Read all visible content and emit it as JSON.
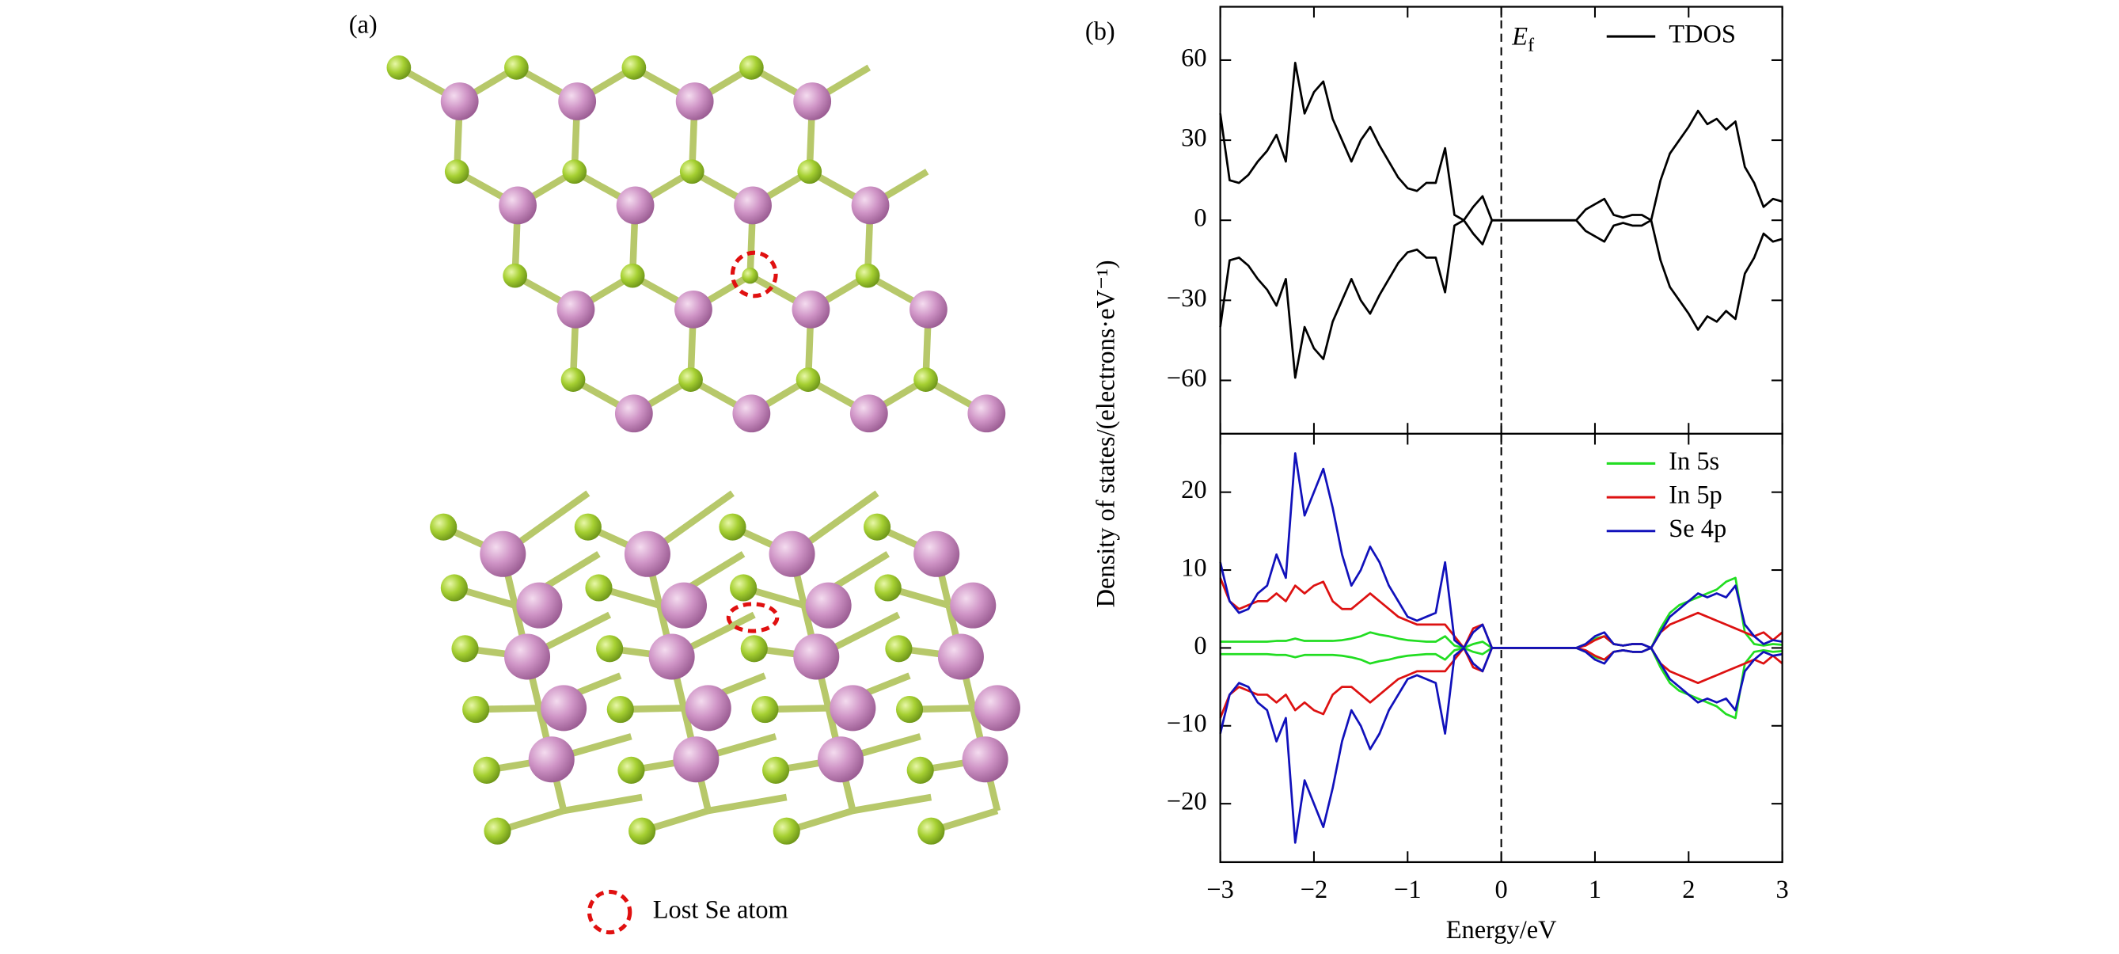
{
  "panel_a": {
    "label": "(a)",
    "legend": "Lost Se atom"
  },
  "chart_data": [
    {
      "type": "line",
      "panel_label": "(b)",
      "annotation_symbol": "E",
      "annotation_subscript": "f",
      "vline": 0,
      "legend": "upper right",
      "show_xtick_labels": false,
      "y_label": "Density of states/(electrons·eV⁻¹)",
      "xlim": [
        -3,
        3
      ],
      "xticks": [
        -3,
        -2,
        -1,
        0,
        1,
        2,
        3
      ],
      "ylim": [
        -80,
        80
      ],
      "yticks": [
        {
          "value": -60,
          "label": "−60"
        },
        {
          "value": -30,
          "label": "−30"
        },
        0,
        30,
        60
      ],
      "x": [
        -3,
        -2.9,
        -2.8,
        -2.7,
        -2.6,
        -2.5,
        -2.4,
        -2.3,
        -2.2,
        -2.1,
        -2,
        -1.9,
        -1.8,
        -1.7,
        -1.6,
        -1.5,
        -1.4,
        -1.3,
        -1.2,
        -1.1,
        -1,
        -0.9,
        -0.8,
        -0.7,
        -0.6,
        -0.5,
        -0.4,
        -0.3,
        -0.2,
        -0.1,
        0,
        0.1,
        0.2,
        0.3,
        0.4,
        0.5,
        0.6,
        0.7,
        0.8,
        0.9,
        1,
        1.1,
        1.2,
        1.3,
        1.4,
        1.5,
        1.6,
        1.7,
        1.8,
        1.9,
        2,
        2.1,
        2.2,
        2.3,
        2.4,
        2.5,
        2.6,
        2.7,
        2.8,
        2.9,
        3
      ],
      "series": [
        {
          "name": "TDOS",
          "color": "#000000",
          "values": [
            40,
            15,
            14,
            17,
            22,
            26,
            32,
            22,
            59,
            40,
            48,
            52,
            38,
            30,
            22,
            30,
            35,
            28,
            22,
            16,
            12,
            11,
            14,
            14,
            27,
            2,
            0,
            5,
            9,
            0,
            0,
            0,
            0,
            0,
            0,
            0,
            0,
            0,
            0,
            4,
            6,
            8,
            2,
            1,
            2,
            2,
            0,
            15,
            25,
            30,
            35,
            41,
            36,
            38,
            34,
            37,
            20,
            14,
            5,
            8,
            7
          ]
        },
        {
          "color": "#000000",
          "values": [
            -40,
            -15,
            -14,
            -17,
            -22,
            -26,
            -32,
            -22,
            -59,
            -40,
            -48,
            -52,
            -38,
            -30,
            -22,
            -30,
            -35,
            -28,
            -22,
            -16,
            -12,
            -11,
            -14,
            -14,
            -27,
            -2,
            0,
            -5,
            -9,
            0,
            0,
            0,
            0,
            0,
            0,
            0,
            0,
            0,
            0,
            -4,
            -6,
            -8,
            -2,
            -1,
            -2,
            -2,
            0,
            -15,
            -25,
            -30,
            -35,
            -41,
            -36,
            -38,
            -34,
            -37,
            -20,
            -14,
            -5,
            -8,
            -7
          ]
        }
      ]
    },
    {
      "type": "line",
      "legend": "upper right",
      "vline": 0,
      "x_label": "Energy/eV",
      "xlim": [
        -3,
        3
      ],
      "xticks": [
        {
          "value": -3,
          "label": "−3"
        },
        {
          "value": -2,
          "label": "−2"
        },
        {
          "value": -1,
          "label": "−1"
        },
        0,
        1,
        2,
        3
      ],
      "ylim": [
        -27.5,
        27.5
      ],
      "yticks": [
        {
          "value": -20,
          "label": "−20"
        },
        {
          "value": -10,
          "label": "−10"
        },
        0,
        10,
        20
      ],
      "x": [
        -3,
        -2.9,
        -2.8,
        -2.7,
        -2.6,
        -2.5,
        -2.4,
        -2.3,
        -2.2,
        -2.1,
        -2,
        -1.9,
        -1.8,
        -1.7,
        -1.6,
        -1.5,
        -1.4,
        -1.3,
        -1.2,
        -1.1,
        -1,
        -0.9,
        -0.8,
        -0.7,
        -0.6,
        -0.5,
        -0.4,
        -0.3,
        -0.2,
        -0.1,
        0,
        0.1,
        0.2,
        0.3,
        0.4,
        0.5,
        0.6,
        0.7,
        0.8,
        0.9,
        1,
        1.1,
        1.2,
        1.3,
        1.4,
        1.5,
        1.6,
        1.7,
        1.8,
        1.9,
        2,
        2.1,
        2.2,
        2.3,
        2.4,
        2.5,
        2.6,
        2.7,
        2.8,
        2.9,
        3
      ],
      "series": [
        {
          "name": "In 5s",
          "color": "#22dd22",
          "values": [
            0.8,
            0.8,
            0.8,
            0.8,
            0.8,
            0.8,
            0.9,
            0.9,
            1.2,
            0.9,
            0.9,
            0.9,
            0.9,
            1,
            1.2,
            1.5,
            2,
            1.7,
            1.5,
            1.2,
            1,
            0.9,
            0.8,
            0.8,
            1.5,
            0.3,
            0,
            0.5,
            0.8,
            0,
            0,
            0,
            0,
            0,
            0,
            0,
            0,
            0,
            0,
            0.5,
            1.2,
            1.5,
            0.5,
            0.3,
            0.5,
            0.5,
            0,
            2.5,
            4.5,
            5.5,
            6,
            6.5,
            7,
            7.5,
            8.5,
            9,
            2,
            0.5,
            0.3,
            0.5,
            0.4
          ]
        },
        {
          "name": "In 5p",
          "color": "#dd1111",
          "values": [
            9,
            6,
            5,
            5.5,
            6,
            6,
            7,
            6,
            8,
            7,
            8,
            8.5,
            6,
            5,
            5,
            6,
            7,
            6,
            5,
            4,
            3.5,
            3,
            3,
            3,
            3,
            1.5,
            0,
            2.5,
            3,
            0,
            0,
            0,
            0,
            0,
            0,
            0,
            0,
            0,
            0,
            0.3,
            1,
            1.5,
            0.5,
            0.3,
            0.5,
            0.5,
            0,
            2,
            3,
            3.5,
            4,
            4.5,
            4,
            3.5,
            3,
            2.5,
            2,
            1.5,
            2,
            1,
            2
          ]
        },
        {
          "name": "Se 4p",
          "color": "#1111bb",
          "values": [
            11,
            6,
            4.5,
            5,
            7,
            8,
            12,
            9,
            25,
            17,
            20,
            23,
            18,
            12,
            8,
            10,
            13,
            11,
            8,
            6,
            4,
            3.5,
            4,
            4.5,
            11,
            1,
            0,
            2,
            3,
            0,
            0,
            0,
            0,
            0,
            0,
            0,
            0,
            0,
            0,
            0.5,
            1.5,
            2,
            0.5,
            0.3,
            0.5,
            0.5,
            0,
            2,
            4,
            5,
            6,
            7,
            6.5,
            7,
            6.5,
            8,
            3,
            1.5,
            0.5,
            1,
            0.8
          ]
        },
        {
          "color": "#22dd22",
          "values": [
            -0.8,
            -0.8,
            -0.8,
            -0.8,
            -0.8,
            -0.8,
            -0.9,
            -0.9,
            -1.2,
            -0.9,
            -0.9,
            -0.9,
            -0.9,
            -1,
            -1.2,
            -1.5,
            -2,
            -1.7,
            -1.5,
            -1.2,
            -1,
            -0.9,
            -0.8,
            -0.8,
            -1.5,
            -0.3,
            0,
            -0.5,
            -0.8,
            0,
            0,
            0,
            0,
            0,
            0,
            0,
            0,
            0,
            0,
            -0.5,
            -1.2,
            -1.5,
            -0.5,
            -0.3,
            -0.5,
            -0.5,
            0,
            -2.5,
            -4.5,
            -5.5,
            -6,
            -6.5,
            -7,
            -7.5,
            -8.5,
            -9,
            -2,
            -0.5,
            -0.3,
            -0.5,
            -0.4
          ]
        },
        {
          "color": "#dd1111",
          "values": [
            -9,
            -6,
            -5,
            -5.5,
            -6,
            -6,
            -7,
            -6,
            -8,
            -7,
            -8,
            -8.5,
            -6,
            -5,
            -5,
            -6,
            -7,
            -6,
            -5,
            -4,
            -3.5,
            -3,
            -3,
            -3,
            -3,
            -1.5,
            0,
            -2.5,
            -3,
            0,
            0,
            0,
            0,
            0,
            0,
            0,
            0,
            0,
            0,
            -0.3,
            -1,
            -1.5,
            -0.5,
            -0.3,
            -0.5,
            -0.5,
            0,
            -2,
            -3,
            -3.5,
            -4,
            -4.5,
            -4,
            -3.5,
            -3,
            -2.5,
            -2,
            -1.5,
            -2,
            -1,
            -2
          ]
        },
        {
          "color": "#1111bb",
          "values": [
            -11,
            -6,
            -4.5,
            -5,
            -7,
            -8,
            -12,
            -9,
            -25,
            -17,
            -20,
            -23,
            -18,
            -12,
            -8,
            -10,
            -13,
            -11,
            -8,
            -6,
            -4,
            -3.5,
            -4,
            -4.5,
            -11,
            -1,
            0,
            -2,
            -3,
            0,
            0,
            0,
            0,
            0,
            0,
            0,
            0,
            0,
            0,
            -0.5,
            -1.5,
            -2,
            -0.5,
            -0.3,
            -0.5,
            -0.5,
            0,
            -2,
            -4,
            -5,
            -6,
            -7,
            -6.5,
            -7,
            -6.5,
            -8,
            -3,
            -1.5,
            -0.5,
            -1,
            -0.8
          ]
        }
      ]
    }
  ]
}
